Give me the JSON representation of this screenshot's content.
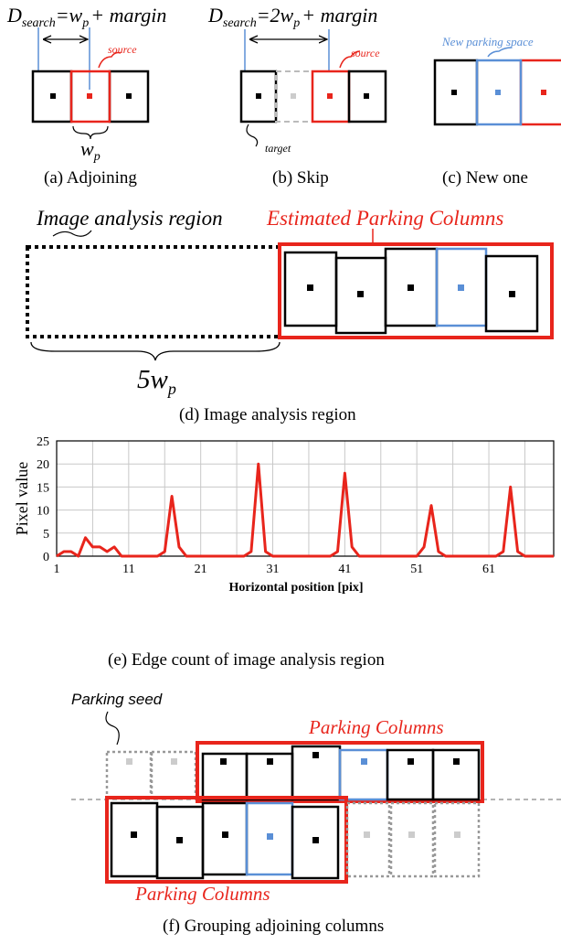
{
  "panel_a": {
    "dsearch_sub": "search",
    "dsearch_eq": "=w",
    "dsearch_p": "p",
    "dsearch_margin": "+ margin",
    "source_label": "source",
    "wp_w": "w",
    "wp_p": "p",
    "caption": "(a)   Adjoining"
  },
  "panel_b": {
    "dsearch_sub": "search",
    "dsearch_eq": "=2w",
    "dsearch_p": "p",
    "dsearch_margin": "+ margin",
    "source_label": "source",
    "target_label": "target",
    "caption": "(b)   Skip"
  },
  "panel_c": {
    "new_space_label": "New parking space",
    "caption": "(c)   New one"
  },
  "panel_d": {
    "analysis_label": "Image analysis region",
    "estimated_label": "Estimated Parking Columns",
    "five_wp_num": "5w",
    "five_wp_sub": "p",
    "caption": "(d)   Image analysis region"
  },
  "panel_e": {
    "caption": "(e)   Edge count of image analysis region"
  },
  "panel_f": {
    "seed_label": "Parking seed",
    "top_columns_label": "Parking Columns",
    "bottom_columns_label": "Parking Columns",
    "caption": "(f)   Grouping adjoining columns"
  },
  "colors": {
    "red": "#e8251c",
    "blue": "#5a8fd6",
    "grey": "#999999",
    "black": "#000000"
  },
  "chart_data": {
    "type": "line",
    "xlabel": "Horizontal position [pix]",
    "ylabel": "Pixel value",
    "xlim": [
      1,
      70
    ],
    "ylim": [
      0,
      25
    ],
    "x_ticks": [
      1,
      11,
      21,
      31,
      41,
      51,
      61
    ],
    "y_ticks": [
      0,
      5,
      10,
      15,
      20,
      25
    ],
    "grid": true,
    "series": [
      {
        "color": "#e8251c",
        "x": [
          1,
          2,
          3,
          4,
          5,
          6,
          7,
          8,
          9,
          10,
          11,
          12,
          13,
          14,
          15,
          16,
          17,
          18,
          19,
          20,
          21,
          22,
          23,
          24,
          25,
          26,
          27,
          28,
          29,
          30,
          31,
          32,
          33,
          34,
          35,
          36,
          37,
          38,
          39,
          40,
          41,
          42,
          43,
          44,
          45,
          46,
          47,
          48,
          49,
          50,
          51,
          52,
          53,
          54,
          55,
          56,
          57,
          58,
          59,
          60,
          61,
          62,
          63,
          64,
          65,
          66,
          67,
          68,
          69,
          70
        ],
        "y": [
          0,
          1,
          1,
          0,
          4,
          2,
          2,
          1,
          2,
          0,
          0,
          0,
          0,
          0,
          0,
          1,
          13,
          2,
          0,
          0,
          0,
          0,
          0,
          0,
          0,
          0,
          0,
          1,
          20,
          1,
          0,
          0,
          0,
          0,
          0,
          0,
          0,
          0,
          0,
          1,
          18,
          2,
          0,
          0,
          0,
          0,
          0,
          0,
          0,
          0,
          0,
          2,
          11,
          1,
          0,
          0,
          0,
          0,
          0,
          0,
          0,
          0,
          1,
          15,
          1,
          0,
          0,
          0,
          0,
          0
        ]
      }
    ]
  }
}
